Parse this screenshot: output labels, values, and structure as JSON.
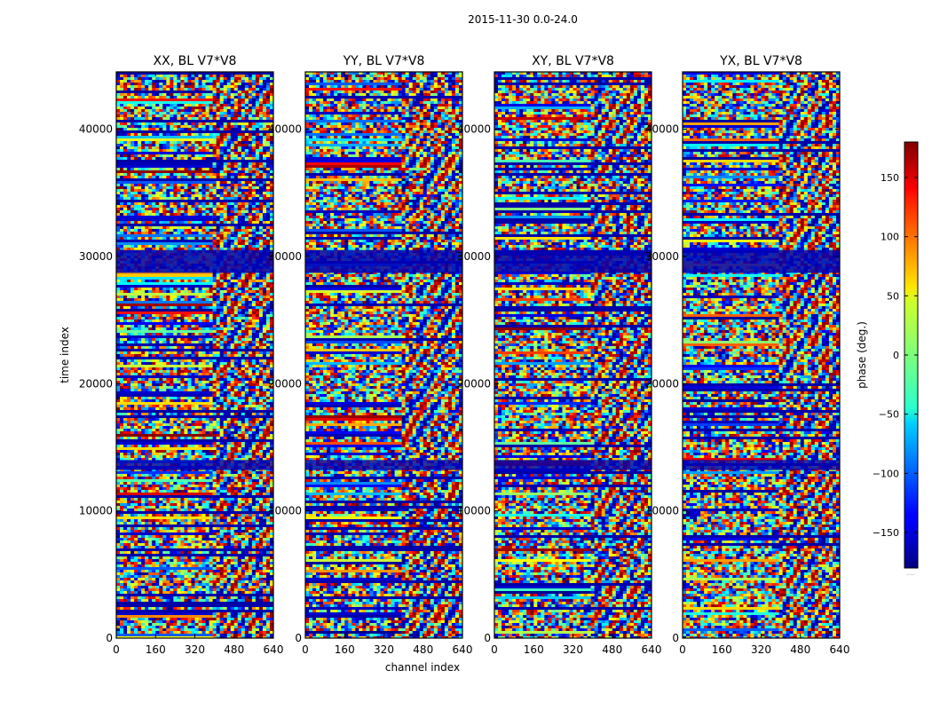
{
  "figure": {
    "suptitle": "2015-11-30 0.0-24.0"
  },
  "chart_data": {
    "type": "heatmap",
    "suptitle": "2015-11-30 0.0-24.0",
    "xlabel": "channel index",
    "ylabel": "time index",
    "xlim": [
      0,
      640
    ],
    "ylim": [
      0,
      44500
    ],
    "xticks": [
      0,
      160,
      320,
      480,
      640
    ],
    "yticks": [
      0,
      10000,
      20000,
      30000,
      40000
    ],
    "colormap": "jet",
    "colorbar": {
      "label": "phase (deg.)",
      "range": [
        -180,
        180
      ],
      "ticks": [
        150,
        100,
        50,
        0,
        -50,
        -100,
        -150
      ],
      "tick_labels": [
        "150",
        "100",
        "50",
        "0",
        "−50",
        "−100",
        "−150"
      ],
      "overflow_label": "......"
    },
    "panels": [
      {
        "title": "XX, BL V7*V8",
        "polarization": "XX",
        "seed": 11
      },
      {
        "title": "YY, BL V7*V8",
        "polarization": "YY",
        "seed": 23
      },
      {
        "title": "XY, BL V7*V8",
        "polarization": "XY",
        "seed": 37
      },
      {
        "title": "YX, BL V7*V8",
        "polarization": "YX",
        "seed": 53
      }
    ]
  }
}
